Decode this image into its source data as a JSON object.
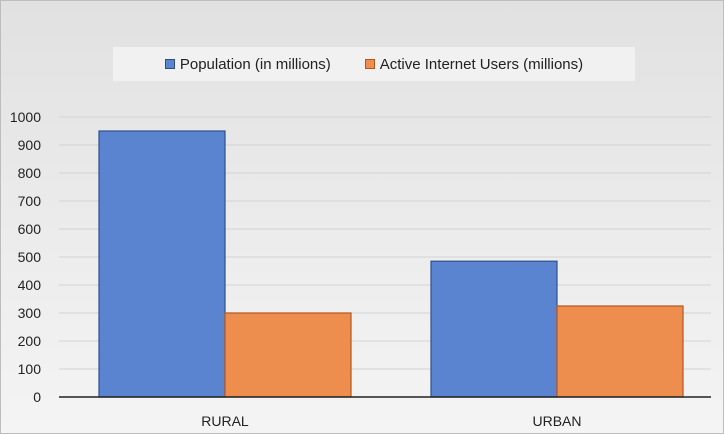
{
  "chart_data": {
    "type": "bar",
    "categories": [
      "RURAL",
      "URBAN"
    ],
    "series": [
      {
        "name": "Population (in millions)",
        "values": [
          950,
          485
        ],
        "color": "#5b84d0",
        "stroke": "#2f4f8c"
      },
      {
        "name": "Active Internet Users (millions)",
        "values": [
          300,
          325
        ],
        "color": "#ed8d4e",
        "stroke": "#b5561d"
      }
    ],
    "yticks": [
      0,
      100,
      200,
      300,
      400,
      500,
      600,
      700,
      800,
      900,
      1000
    ],
    "ylim": [
      0,
      1000
    ],
    "grid": true,
    "legend_position": "top",
    "title": "",
    "xlabel": "",
    "ylabel": ""
  }
}
